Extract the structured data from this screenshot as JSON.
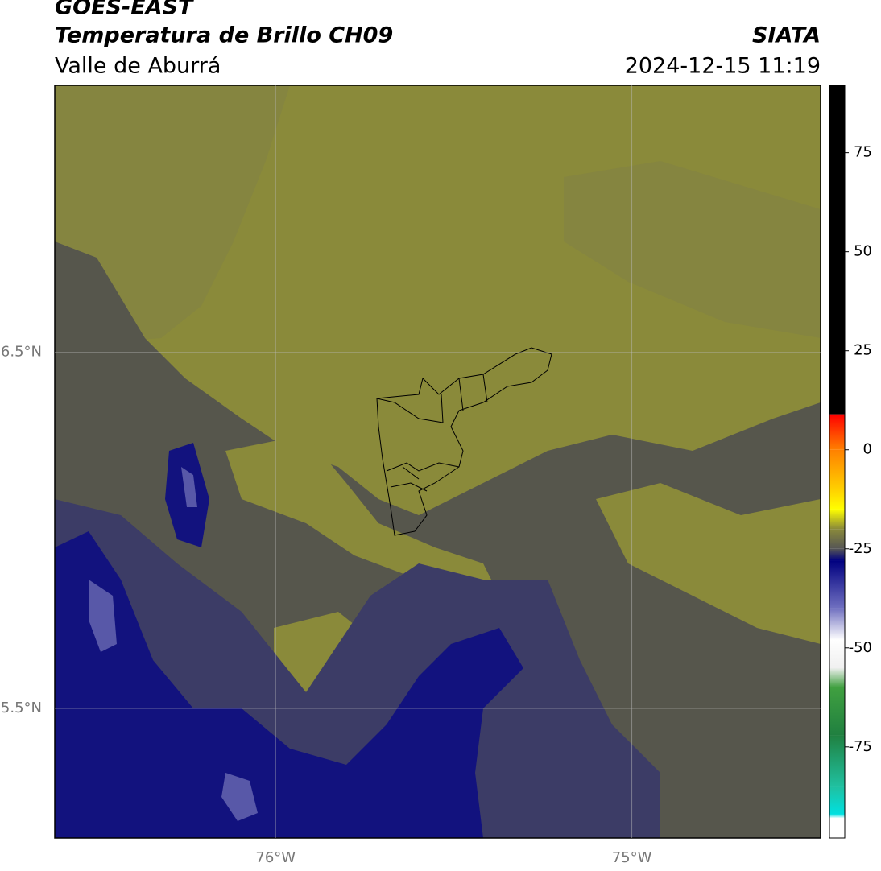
{
  "header": {
    "line1": "GOES-EAST",
    "title": "Temperatura de Brillo CH09",
    "region": "Valle de Aburrá",
    "source": "SIATA",
    "datetime": "2024-12-15 11:19"
  },
  "map": {
    "lon_lim": [
      -76.62,
      -74.47
    ],
    "lat_lim": [
      5.136,
      7.25
    ],
    "lon_ticks": [
      {
        "value": -76,
        "label": "76°W"
      },
      {
        "value": -75,
        "label": "75°W"
      }
    ],
    "lat_ticks": [
      {
        "value": 6.5,
        "label": "6.5°N"
      },
      {
        "value": 5.5,
        "label": "5.5°N"
      }
    ]
  },
  "colorbar": {
    "lim": [
      -98,
      92
    ],
    "ticks": [
      75,
      50,
      25,
      0,
      -25,
      -50,
      -75
    ],
    "stops": [
      {
        "value": 92,
        "color": "#000000"
      },
      {
        "value": 9,
        "color": "#000000"
      },
      {
        "value": 8.9,
        "color": "#ff0000"
      },
      {
        "value": 0,
        "color": "#ff8000"
      },
      {
        "value": -10,
        "color": "#ffd000"
      },
      {
        "value": -15,
        "color": "#ffff00"
      },
      {
        "value": -20,
        "color": "#8a8a3a"
      },
      {
        "value": -25,
        "color": "#555555"
      },
      {
        "value": -28,
        "color": "#000080"
      },
      {
        "value": -40,
        "color": "#7070c0"
      },
      {
        "value": -48,
        "color": "#ffffff"
      },
      {
        "value": -55,
        "color": "#f0f0f0"
      },
      {
        "value": -60,
        "color": "#40a040"
      },
      {
        "value": -72,
        "color": "#208040"
      },
      {
        "value": -85,
        "color": "#20c0a0"
      },
      {
        "value": -92,
        "color": "#00e0e0"
      },
      {
        "value": -93,
        "color": "#ffffff"
      },
      {
        "value": -98,
        "color": "#ffffff"
      }
    ]
  }
}
